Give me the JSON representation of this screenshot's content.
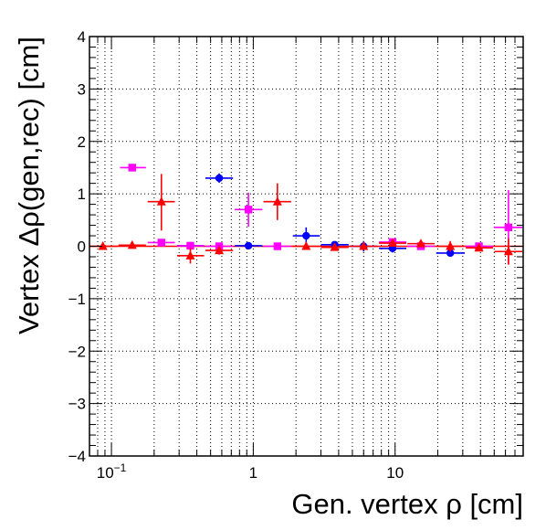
{
  "chart_data": {
    "type": "scatter",
    "title": "",
    "xlabel": "Gen. vertex ρ [cm]",
    "ylabel": "Vertex Δρ(gen,rec) [cm]",
    "xscale": "log",
    "xlim": [
      0.07,
      80
    ],
    "ylim": [
      -4,
      4
    ],
    "grid": true,
    "grid_style": "dotted",
    "legend": "none",
    "x_tick_labels": [
      {
        "value": 0.1,
        "base": "10",
        "exp": "−1"
      },
      {
        "value": 1,
        "base": "1",
        "exp": ""
      },
      {
        "value": 10,
        "base": "10",
        "exp": ""
      }
    ],
    "y_tick_labels": [
      {
        "value": 4,
        "label": "4"
      },
      {
        "value": 3,
        "label": "3"
      },
      {
        "value": 2,
        "label": "2"
      },
      {
        "value": 1,
        "label": "1"
      },
      {
        "value": 0,
        "label": "0"
      },
      {
        "value": -1,
        "label": "−1"
      },
      {
        "value": -2,
        "label": "−2"
      },
      {
        "value": -3,
        "label": "−3"
      },
      {
        "value": -4,
        "label": "−4"
      }
    ],
    "series": [
      {
        "color": "#0000ff",
        "marker": "circle",
        "points": [
          {
            "x": 0.36,
            "y": 0.01,
            "xlo": 0.29,
            "xhi": 0.45,
            "ylo": -0.01,
            "yhi": 0.03
          },
          {
            "x": 0.575,
            "y": 1.3,
            "xlo": 0.46,
            "xhi": 0.72,
            "ylo": 1.21,
            "yhi": 1.39
          },
          {
            "x": 0.925,
            "y": 0.01,
            "xlo": 0.74,
            "xhi": 1.16,
            "ylo": -0.02,
            "yhi": 0.04
          },
          {
            "x": 2.36,
            "y": 0.2,
            "xlo": 1.9,
            "xhi": 2.95,
            "ylo": 0.05,
            "yhi": 0.36
          },
          {
            "x": 3.75,
            "y": 0.03,
            "xlo": 3.0,
            "xhi": 4.7,
            "ylo": -0.03,
            "yhi": 0.09
          },
          {
            "x": 6.0,
            "y": 0.0,
            "xlo": 4.8,
            "xhi": 7.5,
            "ylo": -0.1,
            "yhi": 0.1
          },
          {
            "x": 9.6,
            "y": -0.04,
            "xlo": 7.7,
            "xhi": 12.0,
            "ylo": -0.12,
            "yhi": 0.04
          },
          {
            "x": 24.5,
            "y": -0.13,
            "xlo": 19.5,
            "xhi": 31.0,
            "ylo": -0.17,
            "yhi": -0.09
          }
        ]
      },
      {
        "color": "#ff00ff",
        "marker": "square",
        "points": [
          {
            "x": 0.14,
            "y": 1.5,
            "xlo": 0.115,
            "xhi": 0.175,
            "ylo": 1.47,
            "yhi": 1.53
          },
          {
            "x": 0.225,
            "y": 0.07,
            "xlo": 0.18,
            "xhi": 0.28,
            "ylo": 0.05,
            "yhi": 0.09
          },
          {
            "x": 0.36,
            "y": 0.01,
            "xlo": 0.29,
            "xhi": 0.45,
            "ylo": -0.01,
            "yhi": 0.03
          },
          {
            "x": 0.575,
            "y": 0.0,
            "xlo": 0.46,
            "xhi": 0.72,
            "ylo": -0.03,
            "yhi": 0.03
          },
          {
            "x": 0.925,
            "y": 0.7,
            "xlo": 0.74,
            "xhi": 1.16,
            "ylo": 0.37,
            "yhi": 1.02
          },
          {
            "x": 1.48,
            "y": 0.0,
            "xlo": 1.18,
            "xhi": 1.85,
            "ylo": -0.02,
            "yhi": 0.02
          },
          {
            "x": 9.6,
            "y": 0.08,
            "xlo": 7.7,
            "xhi": 12.0,
            "ylo": 0.04,
            "yhi": 0.12
          },
          {
            "x": 15.2,
            "y": 0.0,
            "xlo": 12.2,
            "xhi": 19.0,
            "ylo": -0.03,
            "yhi": 0.03
          },
          {
            "x": 39.0,
            "y": 0.0,
            "xlo": 31.5,
            "xhi": 49.0,
            "ylo": -0.03,
            "yhi": 0.03
          },
          {
            "x": 63.0,
            "y": 0.36,
            "xlo": 50.0,
            "xhi": 79.0,
            "ylo": -0.35,
            "yhi": 1.07
          }
        ]
      },
      {
        "color": "#ff0000",
        "marker": "triangle",
        "points": [
          {
            "x": 0.087,
            "y": 0.0,
            "xlo": 0.07,
            "xhi": 0.11,
            "ylo": -0.02,
            "yhi": 0.02
          },
          {
            "x": 0.14,
            "y": 0.02,
            "xlo": 0.112,
            "xhi": 0.175,
            "ylo": 0.0,
            "yhi": 0.04
          },
          {
            "x": 0.225,
            "y": 0.85,
            "xlo": 0.18,
            "xhi": 0.28,
            "ylo": 0.3,
            "yhi": 1.38
          },
          {
            "x": 0.36,
            "y": -0.18,
            "xlo": 0.29,
            "xhi": 0.45,
            "ylo": -0.33,
            "yhi": -0.03
          },
          {
            "x": 0.575,
            "y": -0.08,
            "xlo": 0.46,
            "xhi": 0.72,
            "ylo": -0.16,
            "yhi": 0.0
          },
          {
            "x": 1.48,
            "y": 0.85,
            "xlo": 1.18,
            "xhi": 1.85,
            "ylo": 0.5,
            "yhi": 1.2
          },
          {
            "x": 2.36,
            "y": 0.0,
            "xlo": 1.9,
            "xhi": 2.95,
            "ylo": -0.03,
            "yhi": 0.03
          },
          {
            "x": 3.75,
            "y": -0.02,
            "xlo": 3.0,
            "xhi": 4.7,
            "ylo": -0.06,
            "yhi": 0.02
          },
          {
            "x": 6.0,
            "y": 0.0,
            "xlo": 4.8,
            "xhi": 7.5,
            "ylo": -0.05,
            "yhi": 0.05
          },
          {
            "x": 9.6,
            "y": 0.06,
            "xlo": 7.7,
            "xhi": 12.0,
            "ylo": 0.02,
            "yhi": 0.1
          },
          {
            "x": 15.2,
            "y": 0.05,
            "xlo": 12.2,
            "xhi": 19.0,
            "ylo": 0.01,
            "yhi": 0.09
          },
          {
            "x": 24.5,
            "y": 0.0,
            "xlo": 19.5,
            "xhi": 31.0,
            "ylo": -0.1,
            "yhi": 0.1
          },
          {
            "x": 39.0,
            "y": -0.03,
            "xlo": 31.5,
            "xhi": 49.0,
            "ylo": -0.06,
            "yhi": 0.0
          },
          {
            "x": 63.0,
            "y": -0.1,
            "xlo": 50.0,
            "xhi": 79.0,
            "ylo": -0.35,
            "yhi": 0.15
          }
        ]
      }
    ]
  }
}
